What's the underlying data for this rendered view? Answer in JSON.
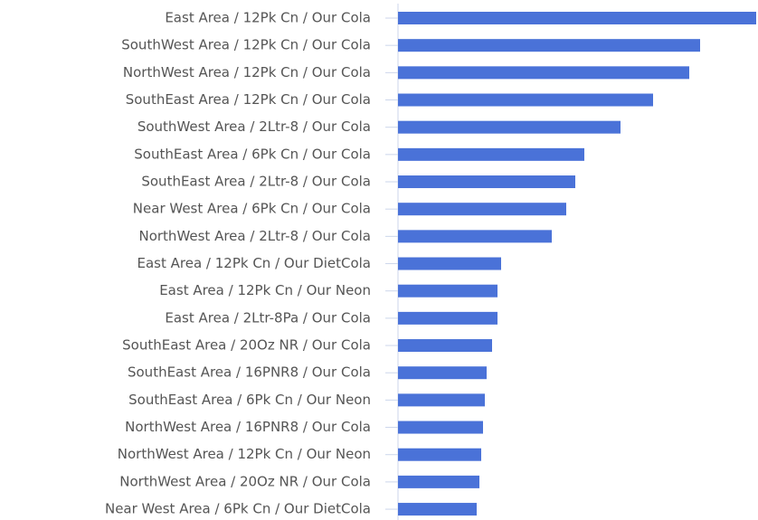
{
  "chart_data": {
    "type": "bar",
    "orientation": "horizontal",
    "categories": [
      "East Area / 12Pk Cn / Our Cola",
      "SouthWest Area / 12Pk Cn / Our Cola",
      "NorthWest Area / 12Pk Cn / Our Cola",
      "SouthEast Area / 12Pk Cn / Our Cola",
      "SouthWest Area / 2Ltr-8 / Our Cola",
      "SouthEast Area / 6Pk Cn / Our Cola",
      "SouthEast Area / 2Ltr-8 / Our Cola",
      "Near West Area / 6Pk Cn / Our Cola",
      "NorthWest Area / 2Ltr-8 / Our Cola",
      "East Area / 12Pk Cn / Our DietCola",
      "East Area / 12Pk Cn / Our Neon",
      "East Area / 2Ltr-8Pa / Our Cola",
      "SouthEast Area / 20Oz NR / Our Cola",
      "SouthEast Area / 16PNR8 / Our Cola",
      "SouthEast Area / 6Pk Cn / Our Neon",
      "NorthWest Area / 16PNR8 / Our Cola",
      "NorthWest Area / 12Pk Cn / Our Neon",
      "NorthWest Area / 20Oz NR / Our Cola",
      "Near West Area / 6Pk Cn / Our DietCola"
    ],
    "values": [
      396,
      334,
      322,
      282,
      246,
      206,
      196,
      186,
      170,
      114,
      110,
      110,
      104,
      98,
      96,
      94,
      92,
      90,
      87
    ],
    "color": "#4a72d8",
    "xlim": [
      0,
      396
    ]
  }
}
